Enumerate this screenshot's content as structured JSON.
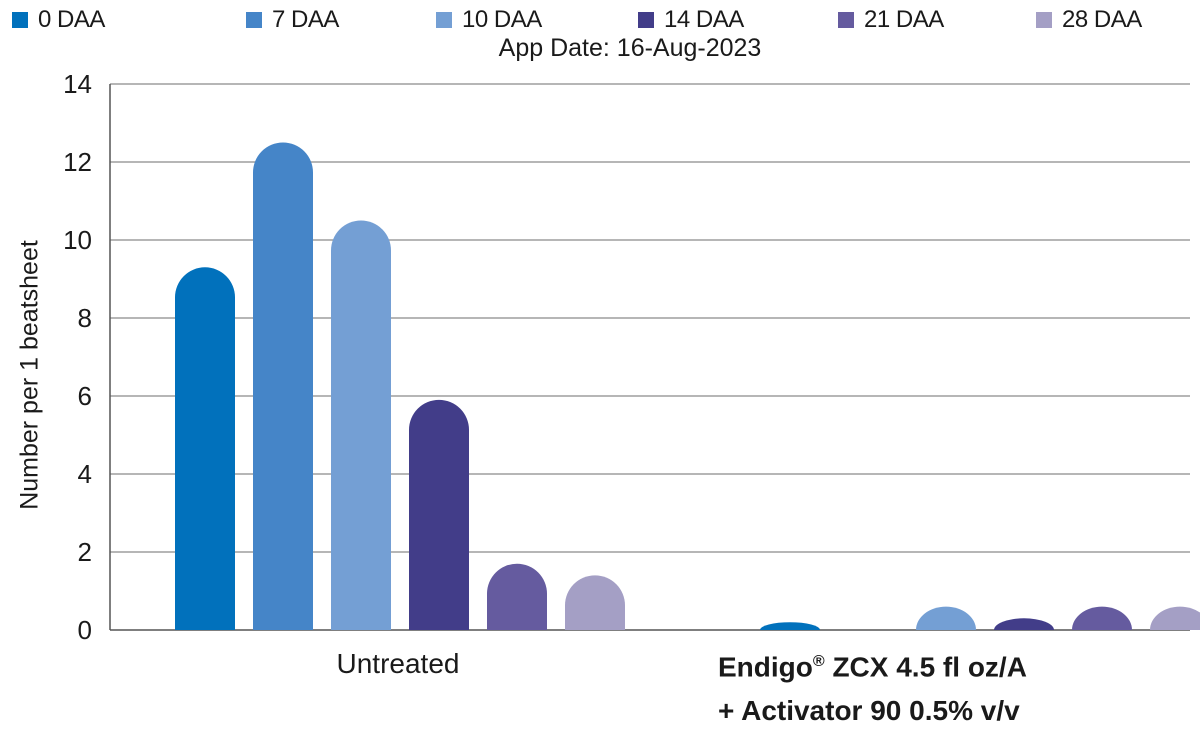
{
  "chart_data": {
    "type": "bar",
    "subtitle": "App Date: 16-Aug-2023",
    "ylabel": "Number per 1 beatsheet",
    "ylim": [
      0,
      14
    ],
    "yticks": [
      0,
      2,
      4,
      6,
      8,
      10,
      12,
      14
    ],
    "grid": true,
    "legend_position": "top",
    "categories": [
      "Untreated",
      "Endigo® ZCX 4.5 fl oz/A + Activator 90 0.5% v/v"
    ],
    "category_lines": [
      [
        "Untreated"
      ],
      [
        "Endigo",
        "® ZCX 4.5 fl oz/A",
        "+ Activator 90 0.5% v/v"
      ]
    ],
    "series": [
      {
        "name": "0 DAA",
        "color": "#0171bc",
        "values": [
          9.3,
          0.2
        ]
      },
      {
        "name": "7 DAA",
        "color": "#4585c8",
        "values": [
          12.5,
          0.0
        ]
      },
      {
        "name": "10 DAA",
        "color": "#749fd4",
        "values": [
          10.5,
          0.6
        ]
      },
      {
        "name": "14 DAA",
        "color": "#423d89",
        "values": [
          5.9,
          0.3
        ]
      },
      {
        "name": "21 DAA",
        "color": "#655b9f",
        "values": [
          1.7,
          0.6
        ]
      },
      {
        "name": "28 DAA",
        "color": "#a49fc5",
        "values": [
          1.4,
          0.6
        ]
      }
    ]
  }
}
